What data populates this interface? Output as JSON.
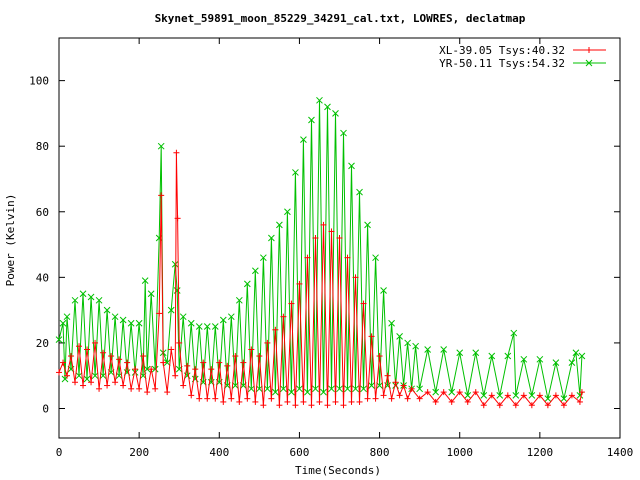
{
  "chart_data": {
    "type": "scatter",
    "title": "Skynet_59891_moon_85229_34291_cal.txt, LOWRES, declatmap",
    "xlabel": "Time(Seconds)",
    "ylabel": "Power (Kelvin)",
    "xlim": [
      0,
      1400
    ],
    "ylim": [
      -9,
      113
    ],
    "xticks": [
      0,
      200,
      400,
      600,
      800,
      1000,
      1200,
      1400
    ],
    "yticks": [
      0,
      20,
      40,
      60,
      80,
      100
    ],
    "legend_position": "top-right",
    "grid": false,
    "series": [
      {
        "name": "XL-39.05 Tsys:40.32",
        "color": "#ff0000",
        "marker": "+",
        "points": [
          [
            0,
            11
          ],
          [
            10,
            14
          ],
          [
            20,
            10
          ],
          [
            30,
            16
          ],
          [
            40,
            8
          ],
          [
            50,
            19
          ],
          [
            60,
            7
          ],
          [
            70,
            18
          ],
          [
            80,
            8
          ],
          [
            90,
            20
          ],
          [
            100,
            6
          ],
          [
            110,
            17
          ],
          [
            120,
            7
          ],
          [
            130,
            16
          ],
          [
            140,
            8
          ],
          [
            150,
            15
          ],
          [
            160,
            7
          ],
          [
            170,
            14
          ],
          [
            180,
            6
          ],
          [
            190,
            12
          ],
          [
            200,
            6
          ],
          [
            210,
            16
          ],
          [
            220,
            5
          ],
          [
            230,
            12
          ],
          [
            240,
            6
          ],
          [
            250,
            29
          ],
          [
            255,
            65
          ],
          [
            260,
            14
          ],
          [
            270,
            5
          ],
          [
            280,
            18
          ],
          [
            290,
            10
          ],
          [
            293,
            78
          ],
          [
            296,
            58
          ],
          [
            300,
            20
          ],
          [
            310,
            7
          ],
          [
            320,
            13
          ],
          [
            330,
            4
          ],
          [
            340,
            12
          ],
          [
            350,
            3
          ],
          [
            360,
            14
          ],
          [
            370,
            3
          ],
          [
            380,
            12
          ],
          [
            390,
            3
          ],
          [
            400,
            14
          ],
          [
            410,
            2
          ],
          [
            420,
            13
          ],
          [
            430,
            3
          ],
          [
            440,
            16
          ],
          [
            450,
            2
          ],
          [
            460,
            14
          ],
          [
            470,
            3
          ],
          [
            480,
            18
          ],
          [
            490,
            2
          ],
          [
            500,
            16
          ],
          [
            510,
            1
          ],
          [
            520,
            20
          ],
          [
            530,
            3
          ],
          [
            540,
            24
          ],
          [
            550,
            1
          ],
          [
            560,
            28
          ],
          [
            570,
            2
          ],
          [
            580,
            32
          ],
          [
            590,
            1
          ],
          [
            600,
            38
          ],
          [
            610,
            2
          ],
          [
            620,
            46
          ],
          [
            630,
            1
          ],
          [
            640,
            52
          ],
          [
            650,
            2
          ],
          [
            660,
            56
          ],
          [
            670,
            1
          ],
          [
            680,
            54
          ],
          [
            690,
            2
          ],
          [
            700,
            52
          ],
          [
            710,
            1
          ],
          [
            720,
            46
          ],
          [
            730,
            2
          ],
          [
            740,
            40
          ],
          [
            750,
            2
          ],
          [
            760,
            32
          ],
          [
            770,
            3
          ],
          [
            780,
            22
          ],
          [
            790,
            3
          ],
          [
            800,
            16
          ],
          [
            810,
            4
          ],
          [
            820,
            10
          ],
          [
            830,
            3
          ],
          [
            840,
            8
          ],
          [
            850,
            4
          ],
          [
            860,
            7
          ],
          [
            870,
            3
          ],
          [
            880,
            6
          ],
          [
            900,
            3
          ],
          [
            920,
            5
          ],
          [
            940,
            2
          ],
          [
            960,
            5
          ],
          [
            980,
            2
          ],
          [
            1000,
            5
          ],
          [
            1020,
            2
          ],
          [
            1040,
            5
          ],
          [
            1060,
            1
          ],
          [
            1080,
            4
          ],
          [
            1100,
            1
          ],
          [
            1120,
            4
          ],
          [
            1140,
            1
          ],
          [
            1160,
            4
          ],
          [
            1180,
            1
          ],
          [
            1200,
            4
          ],
          [
            1220,
            1
          ],
          [
            1240,
            4
          ],
          [
            1260,
            1
          ],
          [
            1280,
            4
          ],
          [
            1300,
            2
          ],
          [
            1305,
            5
          ]
        ]
      },
      {
        "name": "YR-50.11 Tsys:54.32",
        "color": "#00c000",
        "marker": "x",
        "points": [
          [
            0,
            21
          ],
          [
            10,
            26
          ],
          [
            15,
            9
          ],
          [
            20,
            28
          ],
          [
            30,
            12
          ],
          [
            40,
            33
          ],
          [
            50,
            10
          ],
          [
            60,
            35
          ],
          [
            70,
            9
          ],
          [
            80,
            34
          ],
          [
            90,
            10
          ],
          [
            100,
            33
          ],
          [
            110,
            10
          ],
          [
            120,
            30
          ],
          [
            130,
            11
          ],
          [
            140,
            28
          ],
          [
            150,
            10
          ],
          [
            160,
            27
          ],
          [
            170,
            11
          ],
          [
            180,
            26
          ],
          [
            190,
            11
          ],
          [
            200,
            26
          ],
          [
            210,
            10
          ],
          [
            215,
            39
          ],
          [
            220,
            12
          ],
          [
            230,
            35
          ],
          [
            240,
            12
          ],
          [
            250,
            52
          ],
          [
            255,
            80
          ],
          [
            260,
            17
          ],
          [
            270,
            14
          ],
          [
            280,
            30
          ],
          [
            290,
            44
          ],
          [
            295,
            36
          ],
          [
            300,
            12
          ],
          [
            310,
            28
          ],
          [
            320,
            10
          ],
          [
            330,
            26
          ],
          [
            340,
            9
          ],
          [
            350,
            25
          ],
          [
            360,
            8
          ],
          [
            370,
            25
          ],
          [
            380,
            8
          ],
          [
            390,
            25
          ],
          [
            400,
            8
          ],
          [
            410,
            27
          ],
          [
            420,
            7
          ],
          [
            430,
            28
          ],
          [
            440,
            7
          ],
          [
            450,
            33
          ],
          [
            460,
            7
          ],
          [
            470,
            38
          ],
          [
            480,
            6
          ],
          [
            490,
            42
          ],
          [
            500,
            6
          ],
          [
            510,
            46
          ],
          [
            520,
            6
          ],
          [
            530,
            52
          ],
          [
            540,
            5
          ],
          [
            550,
            56
          ],
          [
            560,
            6
          ],
          [
            570,
            60
          ],
          [
            580,
            5
          ],
          [
            590,
            72
          ],
          [
            600,
            6
          ],
          [
            610,
            82
          ],
          [
            620,
            5
          ],
          [
            630,
            88
          ],
          [
            640,
            6
          ],
          [
            650,
            94
          ],
          [
            660,
            5
          ],
          [
            670,
            92
          ],
          [
            680,
            6
          ],
          [
            690,
            90
          ],
          [
            700,
            6
          ],
          [
            710,
            84
          ],
          [
            720,
            6
          ],
          [
            730,
            74
          ],
          [
            740,
            6
          ],
          [
            750,
            66
          ],
          [
            760,
            6
          ],
          [
            770,
            56
          ],
          [
            780,
            7
          ],
          [
            790,
            46
          ],
          [
            800,
            7
          ],
          [
            810,
            36
          ],
          [
            820,
            7
          ],
          [
            830,
            26
          ],
          [
            840,
            7
          ],
          [
            850,
            22
          ],
          [
            860,
            7
          ],
          [
            870,
            20
          ],
          [
            880,
            6
          ],
          [
            890,
            19
          ],
          [
            900,
            6
          ],
          [
            920,
            18
          ],
          [
            940,
            5
          ],
          [
            960,
            18
          ],
          [
            980,
            5
          ],
          [
            1000,
            17
          ],
          [
            1020,
            4
          ],
          [
            1040,
            17
          ],
          [
            1060,
            4
          ],
          [
            1080,
            16
          ],
          [
            1100,
            4
          ],
          [
            1120,
            16
          ],
          [
            1135,
            23
          ],
          [
            1140,
            4
          ],
          [
            1160,
            15
          ],
          [
            1180,
            4
          ],
          [
            1200,
            15
          ],
          [
            1220,
            3
          ],
          [
            1240,
            14
          ],
          [
            1260,
            3
          ],
          [
            1280,
            14
          ],
          [
            1290,
            17
          ],
          [
            1300,
            4
          ],
          [
            1305,
            16
          ]
        ]
      }
    ]
  }
}
